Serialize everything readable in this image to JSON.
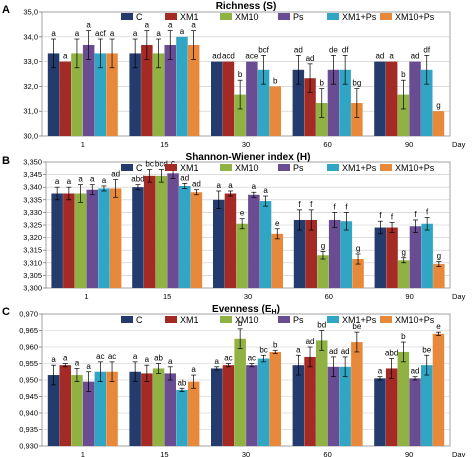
{
  "chart_data": [
    {
      "type": "bar",
      "panel_letter": "A",
      "title": "Richness (S)",
      "categories": [
        "1",
        "15",
        "30",
        "60",
        "90"
      ],
      "xlabel": "Day",
      "ylim": [
        30.0,
        35.0
      ],
      "yticks": [
        "30,0",
        "31,0",
        "32,0",
        "33,0",
        "34,0",
        "35,0"
      ],
      "legend": "top",
      "series": [
        {
          "name": "C",
          "color": "#243b6e",
          "values": [
            33.33,
            33.33,
            33.0,
            32.67,
            33.0
          ],
          "errors": [
            0.58,
            0.58,
            0.0,
            0.58,
            0.0
          ],
          "letters": [
            "a",
            "a",
            "ad",
            "ad",
            "ad"
          ]
        },
        {
          "name": "XM1",
          "color": "#a32a25",
          "values": [
            33.0,
            33.67,
            33.0,
            32.33,
            33.0
          ],
          "errors": [
            0.0,
            0.58,
            0.0,
            0.58,
            0.0
          ],
          "letters": [
            "a",
            "a",
            "acd",
            "ad",
            "a"
          ]
        },
        {
          "name": "XM10",
          "color": "#8fb243",
          "values": [
            33.33,
            33.33,
            31.67,
            31.33,
            31.67
          ],
          "errors": [
            0.58,
            0.58,
            0.58,
            0.58,
            0.58
          ],
          "letters": [
            "a",
            "a",
            "b",
            "b",
            "b"
          ]
        },
        {
          "name": "Ps",
          "color": "#6a4c93",
          "values": [
            33.67,
            33.67,
            33.0,
            32.67,
            33.0
          ],
          "errors": [
            0.58,
            0.58,
            0.0,
            0.58,
            0.0
          ],
          "letters": [
            "a",
            "a",
            "ace",
            "de",
            "ad"
          ]
        },
        {
          "name": "XM1+Ps",
          "color": "#31a6c4",
          "values": [
            33.33,
            34.0,
            32.67,
            32.67,
            32.67
          ],
          "errors": [
            0.58,
            0.0,
            0.58,
            0.58,
            0.58
          ],
          "letters": [
            "acf",
            "a",
            "bcf",
            "df",
            "df"
          ]
        },
        {
          "name": "XM10+Ps",
          "color": "#e8883a",
          "values": [
            33.33,
            33.67,
            32.0,
            31.33,
            31.0
          ],
          "errors": [
            0.58,
            0.58,
            0.0,
            0.58,
            0.0
          ],
          "letters": [
            "a",
            "a",
            "b",
            "bg",
            "g"
          ]
        }
      ]
    },
    {
      "type": "bar",
      "panel_letter": "B",
      "title": "Shannon-Wiener index (H)",
      "categories": [
        "1",
        "15",
        "30",
        "60",
        "90"
      ],
      "xlabel": "Day",
      "ylim": [
        3.3,
        3.35
      ],
      "yticks": [
        "3,300",
        "3,305",
        "3,310",
        "3,315",
        "3,320",
        "3,325",
        "3,330",
        "3,335",
        "3,340",
        "3,345",
        "3,350"
      ],
      "legend": "top",
      "series": [
        {
          "name": "C",
          "color": "#243b6e",
          "values": [
            3.3375,
            3.34,
            3.335,
            3.327,
            3.324
          ],
          "errors": [
            0.0025,
            0.001,
            0.0035,
            0.004,
            0.0025
          ],
          "letters": [
            "a",
            "abd",
            "a",
            "f",
            "f"
          ]
        },
        {
          "name": "XM1",
          "color": "#a32a25",
          "values": [
            3.3375,
            3.3445,
            3.3375,
            3.327,
            3.324
          ],
          "errors": [
            0.0025,
            0.0025,
            0.001,
            0.004,
            0.002
          ],
          "letters": [
            "a",
            "bc",
            "a",
            "f",
            "f"
          ]
        },
        {
          "name": "XM10",
          "color": "#8fb243",
          "values": [
            3.3375,
            3.3445,
            3.3255,
            3.313,
            3.311
          ],
          "errors": [
            0.0035,
            0.0025,
            0.002,
            0.0015,
            0.001
          ],
          "letters": [
            "a",
            "bcd",
            "e",
            "g",
            "g"
          ]
        },
        {
          "name": "Ps",
          "color": "#6a4c93",
          "values": [
            3.339,
            3.3455,
            3.337,
            3.327,
            3.3245
          ],
          "errors": [
            0.002,
            0.002,
            0.001,
            0.003,
            0.0025
          ],
          "letters": [
            "a",
            "c",
            "a",
            "f",
            "f"
          ]
        },
        {
          "name": "XM1+Ps",
          "color": "#31a6c4",
          "values": [
            3.3395,
            3.3405,
            3.3345,
            3.3265,
            3.3255
          ],
          "errors": [
            0.001,
            0.001,
            0.002,
            0.0035,
            0.0025
          ],
          "letters": [
            "a",
            "ad",
            "a",
            "f",
            "f"
          ]
        },
        {
          "name": "XM10+Ps",
          "color": "#e8883a",
          "values": [
            3.3395,
            3.338,
            3.3215,
            3.3115,
            3.3095
          ],
          "errors": [
            0.0035,
            0.001,
            0.002,
            0.002,
            0.001
          ],
          "letters": [
            "ad",
            "ad",
            "e",
            "g",
            "g"
          ]
        }
      ]
    },
    {
      "type": "bar",
      "panel_letter": "C",
      "title_text": "Evenness (E",
      "title_sub": "H",
      "title_end": ")",
      "categories": [
        "1",
        "15",
        "30",
        "60",
        "90"
      ],
      "xlabel": "Day",
      "ylim": [
        0.93,
        0.97
      ],
      "yticks": [
        "0,930",
        "0,935",
        "0,940",
        "0,945",
        "0,950",
        "0,955",
        "0,960",
        "0,965",
        "0,970"
      ],
      "legend": "top",
      "series": [
        {
          "name": "C",
          "color": "#243b6e",
          "values": [
            0.9515,
            0.9525,
            0.9535,
            0.9545,
            0.9505
          ],
          "errors": [
            0.003,
            0.003,
            0.0005,
            0.003,
            0.0005
          ],
          "letters": [
            "a",
            "a",
            "a",
            "a",
            "a"
          ]
        },
        {
          "name": "XM1",
          "color": "#a32a25",
          "values": [
            0.9545,
            0.952,
            0.9545,
            0.957,
            0.9535
          ],
          "errors": [
            0.0005,
            0.0025,
            0.0005,
            0.003,
            0.003
          ],
          "letters": [
            "a",
            "a",
            "ac",
            "ad",
            "abd"
          ]
        },
        {
          "name": "XM10",
          "color": "#8fb243",
          "values": [
            0.9515,
            0.9535,
            0.9625,
            0.962,
            0.9585
          ],
          "errors": [
            0.002,
            0.0015,
            0.003,
            0.003,
            0.003
          ],
          "letters": [
            "a",
            "ab",
            "b",
            "bd",
            "b"
          ]
        },
        {
          "name": "Ps",
          "color": "#6a4c93",
          "values": [
            0.9495,
            0.952,
            0.9545,
            0.954,
            0.9505
          ],
          "errors": [
            0.003,
            0.002,
            0.0005,
            0.003,
            0.0005
          ],
          "letters": [
            "a",
            "a",
            "ac",
            "ad",
            "ad"
          ]
        },
        {
          "name": "XM1+Ps",
          "color": "#31a6c4",
          "values": [
            0.9525,
            0.947,
            0.9565,
            0.954,
            0.9545
          ],
          "errors": [
            0.003,
            0.0005,
            0.001,
            0.003,
            0.003
          ],
          "letters": [
            "ac",
            "ab",
            "bc",
            "ad",
            "be"
          ]
        },
        {
          "name": "XM10+Ps",
          "color": "#e8883a",
          "values": [
            0.9525,
            0.9495,
            0.9585,
            0.9615,
            0.964
          ],
          "errors": [
            0.003,
            0.002,
            0.0005,
            0.003,
            0.0005
          ],
          "letters": [
            "ac",
            "a",
            "b",
            "be",
            "e"
          ]
        }
      ]
    }
  ]
}
